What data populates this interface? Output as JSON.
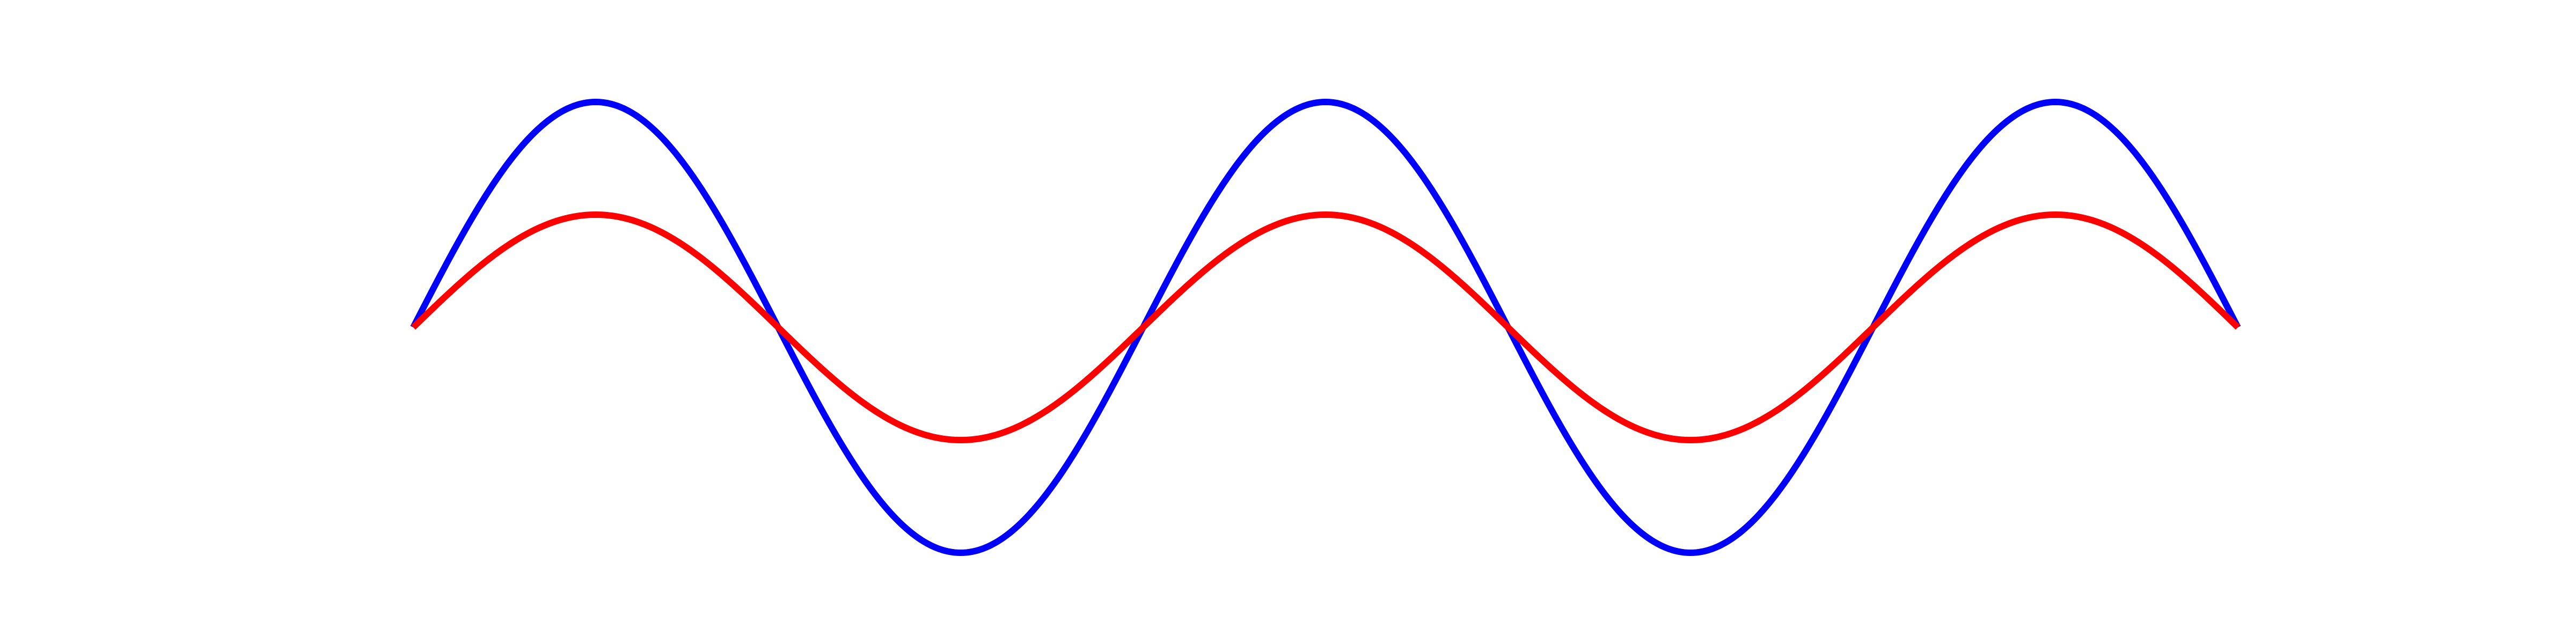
{
  "chart_data": {
    "type": "line",
    "title": "",
    "xlabel": "",
    "ylabel": "",
    "grid": false,
    "legend": "none",
    "xlim": [
      0,
      5
    ],
    "ylim": [
      -1,
      1
    ],
    "series": [
      {
        "color": "#0000ff",
        "function": "sin",
        "amplitude": 1.0,
        "cycles": 2.5,
        "x": [
          0,
          0.5,
          1.0,
          1.5,
          2.0,
          2.5,
          3.0,
          3.5,
          4.0,
          4.5,
          5.0
        ],
        "y": [
          0,
          1,
          0,
          -1,
          0,
          1,
          0,
          -1,
          0,
          1,
          0
        ]
      },
      {
        "color": "#ff0000",
        "function": "sin",
        "amplitude": 0.5,
        "cycles": 2.5,
        "x": [
          0,
          0.5,
          1.0,
          1.5,
          2.0,
          2.5,
          3.0,
          3.5,
          4.0,
          4.5,
          5.0
        ],
        "y": [
          0,
          0.5,
          0,
          -0.5,
          0,
          0.5,
          0,
          -0.5,
          0,
          0.5,
          0
        ]
      }
    ]
  }
}
